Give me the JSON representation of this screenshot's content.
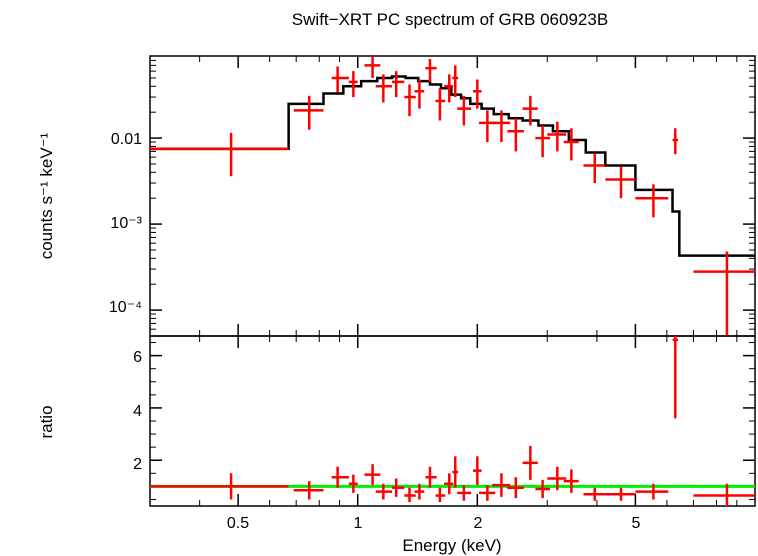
{
  "chart_data": [
    {
      "type": "scatter",
      "title": "Swift−XRT PC spectrum of GRB 060923B",
      "ylabel": "counts s⁻¹ keV⁻¹",
      "xlabel": "",
      "xscale": "log",
      "yscale": "log",
      "xlim": [
        0.3,
        10
      ],
      "ylim": [
        5e-05,
        0.09
      ],
      "x_tick_labels": [],
      "y_tick_labels": [
        "0.01",
        "10⁻³",
        "10⁻⁴"
      ],
      "colors": {
        "data": "#ff0000",
        "model": "#000000"
      },
      "series": [
        {
          "kind": "data",
          "points": [
            {
              "x": 0.48,
              "xlo": 0.3,
              "xhi": 0.67,
              "y": 0.0075,
              "ylo": 0.0036,
              "yhi": 0.0115
            },
            {
              "x": 0.755,
              "xlo": 0.69,
              "xhi": 0.82,
              "y": 0.021,
              "ylo": 0.0125,
              "yhi": 0.031
            },
            {
              "x": 0.89,
              "xlo": 0.86,
              "xhi": 0.95,
              "y": 0.05,
              "ylo": 0.034,
              "yhi": 0.068
            },
            {
              "x": 0.975,
              "xlo": 0.95,
              "xhi": 1.0,
              "y": 0.045,
              "ylo": 0.03,
              "yhi": 0.06
            },
            {
              "x": 1.09,
              "xlo": 1.04,
              "xhi": 1.14,
              "y": 0.07,
              "ylo": 0.05,
              "yhi": 0.088
            },
            {
              "x": 1.16,
              "xlo": 1.11,
              "xhi": 1.22,
              "y": 0.04,
              "ylo": 0.026,
              "yhi": 0.055
            },
            {
              "x": 1.25,
              "xlo": 1.22,
              "xhi": 1.31,
              "y": 0.045,
              "ylo": 0.03,
              "yhi": 0.06
            },
            {
              "x": 1.35,
              "xlo": 1.31,
              "xhi": 1.4,
              "y": 0.03,
              "ylo": 0.018,
              "yhi": 0.042
            },
            {
              "x": 1.43,
              "xlo": 1.39,
              "xhi": 1.47,
              "y": 0.035,
              "ylo": 0.022,
              "yhi": 0.048
            },
            {
              "x": 1.52,
              "xlo": 1.48,
              "xhi": 1.58,
              "y": 0.065,
              "ylo": 0.045,
              "yhi": 0.083
            },
            {
              "x": 1.61,
              "xlo": 1.57,
              "xhi": 1.66,
              "y": 0.027,
              "ylo": 0.016,
              "yhi": 0.038
            },
            {
              "x": 1.7,
              "xlo": 1.65,
              "xhi": 1.74,
              "y": 0.04,
              "ylo": 0.026,
              "yhi": 0.055
            },
            {
              "x": 1.76,
              "xlo": 1.73,
              "xhi": 1.79,
              "y": 0.05,
              "ylo": 0.03,
              "yhi": 0.07
            },
            {
              "x": 1.85,
              "xlo": 1.78,
              "xhi": 1.93,
              "y": 0.022,
              "ylo": 0.014,
              "yhi": 0.031
            },
            {
              "x": 2.0,
              "xlo": 1.95,
              "xhi": 2.05,
              "y": 0.035,
              "ylo": 0.022,
              "yhi": 0.048
            },
            {
              "x": 2.12,
              "xlo": 2.02,
              "xhi": 2.22,
              "y": 0.015,
              "ylo": 0.009,
              "yhi": 0.021
            },
            {
              "x": 2.3,
              "xlo": 2.18,
              "xhi": 2.42,
              "y": 0.015,
              "ylo": 0.009,
              "yhi": 0.021
            },
            {
              "x": 2.5,
              "xlo": 2.38,
              "xhi": 2.62,
              "y": 0.012,
              "ylo": 0.007,
              "yhi": 0.017
            },
            {
              "x": 2.72,
              "xlo": 2.6,
              "xhi": 2.84,
              "y": 0.022,
              "ylo": 0.014,
              "yhi": 0.031
            },
            {
              "x": 2.92,
              "xlo": 2.8,
              "xhi": 3.05,
              "y": 0.01,
              "ylo": 0.006,
              "yhi": 0.014
            },
            {
              "x": 3.18,
              "xlo": 3.0,
              "xhi": 3.35,
              "y": 0.011,
              "ylo": 0.007,
              "yhi": 0.0155
            },
            {
              "x": 3.45,
              "xlo": 3.3,
              "xhi": 3.6,
              "y": 0.009,
              "ylo": 0.0055,
              "yhi": 0.013
            },
            {
              "x": 3.95,
              "xlo": 3.7,
              "xhi": 4.2,
              "y": 0.0048,
              "ylo": 0.003,
              "yhi": 0.0067
            },
            {
              "x": 4.6,
              "xlo": 4.2,
              "xhi": 5.0,
              "y": 0.0033,
              "ylo": 0.002,
              "yhi": 0.0047
            },
            {
              "x": 5.55,
              "xlo": 5.0,
              "xhi": 6.05,
              "y": 0.002,
              "ylo": 0.0012,
              "yhi": 0.0029
            },
            {
              "x": 6.3,
              "xlo": 6.2,
              "xhi": 6.4,
              "y": 0.0095,
              "ylo": 0.0065,
              "yhi": 0.013
            },
            {
              "x": 8.5,
              "xlo": 7.0,
              "xhi": 10.0,
              "y": 0.00028,
              "ylo": 5e-05,
              "yhi": 0.00048
            }
          ]
        },
        {
          "kind": "model",
          "steps": [
            {
              "xlo": 0.3,
              "xhi": 0.67,
              "y": 0.0075
            },
            {
              "xlo": 0.67,
              "xhi": 0.82,
              "y": 0.025
            },
            {
              "xlo": 0.82,
              "xhi": 0.92,
              "y": 0.033
            },
            {
              "xlo": 0.92,
              "xhi": 1.02,
              "y": 0.04
            },
            {
              "xlo": 1.02,
              "xhi": 1.12,
              "y": 0.046
            },
            {
              "xlo": 1.12,
              "xhi": 1.22,
              "y": 0.05
            },
            {
              "xlo": 1.22,
              "xhi": 1.32,
              "y": 0.052
            },
            {
              "xlo": 1.32,
              "xhi": 1.42,
              "y": 0.05
            },
            {
              "xlo": 1.42,
              "xhi": 1.52,
              "y": 0.046
            },
            {
              "xlo": 1.52,
              "xhi": 1.62,
              "y": 0.042
            },
            {
              "xlo": 1.62,
              "xhi": 1.72,
              "y": 0.038
            },
            {
              "xlo": 1.72,
              "xhi": 1.82,
              "y": 0.032
            },
            {
              "xlo": 1.82,
              "xhi": 1.92,
              "y": 0.029
            },
            {
              "xlo": 1.92,
              "xhi": 2.05,
              "y": 0.025
            },
            {
              "xlo": 2.05,
              "xhi": 2.2,
              "y": 0.022
            },
            {
              "xlo": 2.2,
              "xhi": 2.4,
              "y": 0.019
            },
            {
              "xlo": 2.4,
              "xhi": 2.6,
              "y": 0.017
            },
            {
              "xlo": 2.6,
              "xhi": 2.85,
              "y": 0.016
            },
            {
              "xlo": 2.85,
              "xhi": 3.1,
              "y": 0.014
            },
            {
              "xlo": 3.1,
              "xhi": 3.4,
              "y": 0.012
            },
            {
              "xlo": 3.4,
              "xhi": 3.75,
              "y": 0.0095
            },
            {
              "xlo": 3.75,
              "xhi": 4.2,
              "y": 0.0068
            },
            {
              "xlo": 4.2,
              "xhi": 5.0,
              "y": 0.0048
            },
            {
              "xlo": 5.0,
              "xhi": 6.2,
              "y": 0.0025
            },
            {
              "xlo": 6.2,
              "xhi": 6.45,
              "y": 0.0014
            },
            {
              "xlo": 6.45,
              "xhi": 10.0,
              "y": 0.00043
            }
          ]
        }
      ]
    },
    {
      "type": "scatter",
      "ylabel": "ratio",
      "xlabel": "Energy (keV)",
      "xscale": "log",
      "yscale": "linear",
      "xlim": [
        0.3,
        10
      ],
      "ylim": [
        0.25,
        6.75
      ],
      "x_tick_labels": [
        "0.5",
        "1",
        "2",
        "5"
      ],
      "y_tick_labels": [
        "2",
        "4",
        "6"
      ],
      "reference_line": 1.0,
      "colors": {
        "data": "#ff0000",
        "reference": "#00ee00"
      },
      "points": [
        {
          "x": 0.48,
          "xlo": 0.3,
          "xhi": 0.67,
          "y": 1.0,
          "ylo": 0.5,
          "yhi": 1.5
        },
        {
          "x": 0.755,
          "xlo": 0.69,
          "xhi": 0.82,
          "y": 0.85,
          "ylo": 0.5,
          "yhi": 1.2
        },
        {
          "x": 0.89,
          "xlo": 0.86,
          "xhi": 0.95,
          "y": 1.35,
          "ylo": 0.95,
          "yhi": 1.75
        },
        {
          "x": 0.975,
          "xlo": 0.95,
          "xhi": 1.0,
          "y": 1.1,
          "ylo": 0.75,
          "yhi": 1.45
        },
        {
          "x": 1.09,
          "xlo": 1.04,
          "xhi": 1.14,
          "y": 1.45,
          "ylo": 1.05,
          "yhi": 1.85
        },
        {
          "x": 1.16,
          "xlo": 1.11,
          "xhi": 1.22,
          "y": 0.8,
          "ylo": 0.5,
          "yhi": 1.1
        },
        {
          "x": 1.25,
          "xlo": 1.22,
          "xhi": 1.31,
          "y": 0.95,
          "ylo": 0.6,
          "yhi": 1.3
        },
        {
          "x": 1.35,
          "xlo": 1.31,
          "xhi": 1.4,
          "y": 0.65,
          "ylo": 0.4,
          "yhi": 0.95
        },
        {
          "x": 1.43,
          "xlo": 1.39,
          "xhi": 1.47,
          "y": 0.8,
          "ylo": 0.5,
          "yhi": 1.1
        },
        {
          "x": 1.52,
          "xlo": 1.48,
          "xhi": 1.58,
          "y": 1.35,
          "ylo": 0.95,
          "yhi": 1.75
        },
        {
          "x": 1.61,
          "xlo": 1.57,
          "xhi": 1.66,
          "y": 0.65,
          "ylo": 0.4,
          "yhi": 0.95
        },
        {
          "x": 1.7,
          "xlo": 1.65,
          "xhi": 1.74,
          "y": 1.1,
          "ylo": 0.7,
          "yhi": 1.5
        },
        {
          "x": 1.76,
          "xlo": 1.73,
          "xhi": 1.79,
          "y": 1.55,
          "ylo": 0.95,
          "yhi": 2.15
        },
        {
          "x": 1.85,
          "xlo": 1.78,
          "xhi": 1.93,
          "y": 0.75,
          "ylo": 0.45,
          "yhi": 1.05
        },
        {
          "x": 2.0,
          "xlo": 1.95,
          "xhi": 2.05,
          "y": 1.6,
          "ylo": 1.05,
          "yhi": 2.15
        },
        {
          "x": 2.12,
          "xlo": 2.02,
          "xhi": 2.22,
          "y": 0.75,
          "ylo": 0.45,
          "yhi": 1.05
        },
        {
          "x": 2.3,
          "xlo": 2.18,
          "xhi": 2.42,
          "y": 1.05,
          "ylo": 0.6,
          "yhi": 1.5
        },
        {
          "x": 2.5,
          "xlo": 2.38,
          "xhi": 2.62,
          "y": 0.95,
          "ylo": 0.55,
          "yhi": 1.35
        },
        {
          "x": 2.72,
          "xlo": 2.6,
          "xhi": 2.84,
          "y": 1.9,
          "ylo": 1.25,
          "yhi": 2.55
        },
        {
          "x": 2.92,
          "xlo": 2.8,
          "xhi": 3.05,
          "y": 0.9,
          "ylo": 0.55,
          "yhi": 1.25
        },
        {
          "x": 3.18,
          "xlo": 3.0,
          "xhi": 3.35,
          "y": 1.3,
          "ylo": 0.85,
          "yhi": 1.75
        },
        {
          "x": 3.45,
          "xlo": 3.3,
          "xhi": 3.6,
          "y": 1.2,
          "ylo": 0.75,
          "yhi": 1.65
        },
        {
          "x": 3.95,
          "xlo": 3.7,
          "xhi": 4.2,
          "y": 0.7,
          "ylo": 0.45,
          "yhi": 0.95
        },
        {
          "x": 4.6,
          "xlo": 4.2,
          "xhi": 5.0,
          "y": 0.7,
          "ylo": 0.45,
          "yhi": 0.95
        },
        {
          "x": 5.55,
          "xlo": 5.0,
          "xhi": 6.05,
          "y": 0.8,
          "ylo": 0.5,
          "yhi": 1.1
        },
        {
          "x": 6.3,
          "xlo": 6.2,
          "xhi": 6.4,
          "y": 6.6,
          "ylo": 3.6,
          "yhi": 6.75
        },
        {
          "x": 8.5,
          "xlo": 7.0,
          "xhi": 10.0,
          "y": 0.65,
          "ylo": 0.25,
          "yhi": 1.1
        }
      ]
    }
  ]
}
